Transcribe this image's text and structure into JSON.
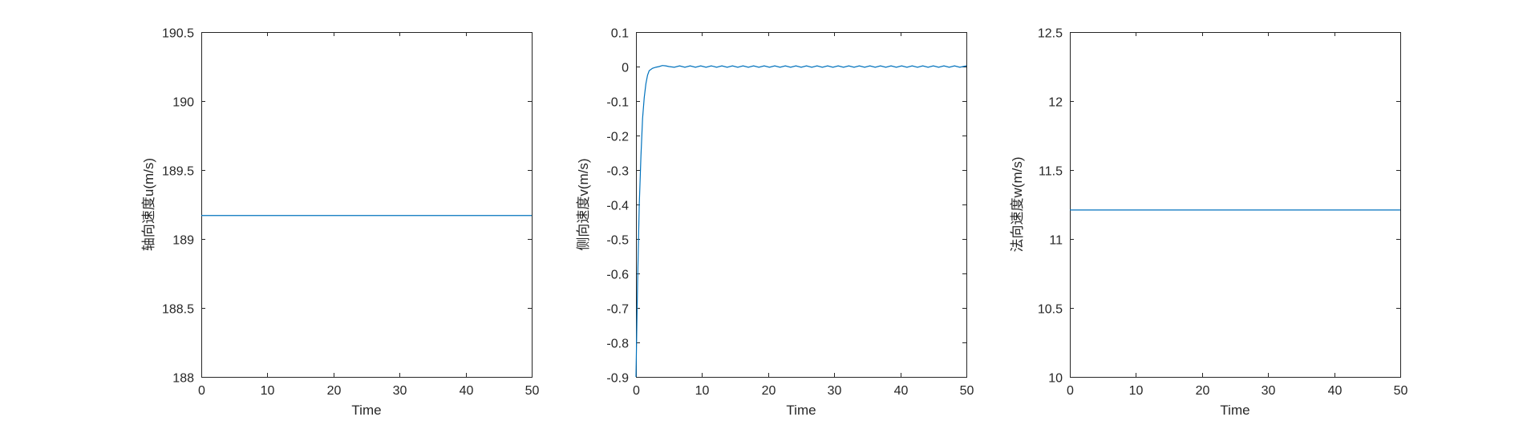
{
  "colors": {
    "series": "#0072BD",
    "axis": "#262626",
    "background": "#ffffff"
  },
  "chart_data": [
    {
      "type": "line",
      "xlabel": "Time",
      "ylabel": "轴向速度u(m/s)",
      "xlim": [
        0,
        50
      ],
      "ylim": [
        188,
        190.5
      ],
      "xticks": [
        "0",
        "10",
        "20",
        "30",
        "40",
        "50"
      ],
      "yticks": [
        "188",
        "188.5",
        "189",
        "189.5",
        "190",
        "190.5"
      ],
      "grid": false,
      "series": [
        {
          "x": [
            0,
            50
          ],
          "y": [
            189.17,
            189.17
          ]
        }
      ]
    },
    {
      "type": "line",
      "xlabel": "Time",
      "ylabel": "侧向速度v(m/s)",
      "xlim": [
        0,
        50
      ],
      "ylim": [
        -0.9,
        0.1
      ],
      "xticks": [
        "0",
        "10",
        "20",
        "30",
        "40",
        "50"
      ],
      "yticks": [
        "-0.9",
        "-0.8",
        "-0.7",
        "-0.6",
        "-0.5",
        "-0.4",
        "-0.3",
        "-0.2",
        "-0.1",
        "0",
        "0.1"
      ],
      "grid": false,
      "series": [
        {
          "x": [
            0,
            0.25,
            0.5,
            0.75,
            1,
            1.25,
            1.5,
            1.75,
            2,
            2.5,
            3,
            3.5,
            4,
            4.5,
            5,
            5.8,
            6.6,
            7.4,
            8.2,
            9,
            9.8,
            10.6,
            11.4,
            12.2,
            13,
            13.8,
            14.6,
            15.4,
            16.2,
            17,
            17.8,
            18.6,
            19.4,
            20.2,
            21,
            21.8,
            22.6,
            23.4,
            24.2,
            25,
            25.8,
            26.6,
            27.4,
            28.2,
            29,
            29.8,
            30.6,
            31.4,
            32.2,
            33,
            33.8,
            34.6,
            35.4,
            36.2,
            37,
            37.8,
            38.6,
            39.4,
            40.2,
            41,
            41.8,
            42.6,
            43.4,
            44.2,
            45,
            45.8,
            46.6,
            47.4,
            48.2,
            49,
            50
          ],
          "y": [
            -0.9,
            -0.62,
            -0.4,
            -0.26,
            -0.15,
            -0.09,
            -0.05,
            -0.025,
            -0.012,
            -0.005,
            -0.002,
            0.0,
            0.003,
            0.002,
            0.0,
            -0.002,
            0.002,
            -0.002,
            0.002,
            -0.002,
            0.002,
            -0.002,
            0.002,
            -0.002,
            0.002,
            -0.002,
            0.002,
            -0.002,
            0.002,
            -0.002,
            0.002,
            -0.002,
            0.002,
            -0.002,
            0.002,
            -0.002,
            0.002,
            -0.002,
            0.002,
            -0.002,
            0.002,
            -0.002,
            0.002,
            -0.002,
            0.002,
            -0.002,
            0.002,
            -0.002,
            0.002,
            -0.002,
            0.002,
            -0.002,
            0.002,
            -0.002,
            0.002,
            -0.002,
            0.002,
            -0.002,
            0.002,
            -0.002,
            0.002,
            -0.002,
            0.002,
            -0.002,
            0.002,
            -0.002,
            0.002,
            -0.002,
            0.002,
            -0.002,
            0.002
          ]
        }
      ]
    },
    {
      "type": "line",
      "xlabel": "Time",
      "ylabel": "法向速度w(m/s)",
      "xlim": [
        0,
        50
      ],
      "ylim": [
        10,
        12.5
      ],
      "xticks": [
        "0",
        "10",
        "20",
        "30",
        "40",
        "50"
      ],
      "yticks": [
        "10",
        "10.5",
        "11",
        "11.5",
        "12",
        "12.5"
      ],
      "grid": false,
      "series": [
        {
          "x": [
            0,
            50
          ],
          "y": [
            11.21,
            11.21
          ]
        }
      ]
    }
  ]
}
